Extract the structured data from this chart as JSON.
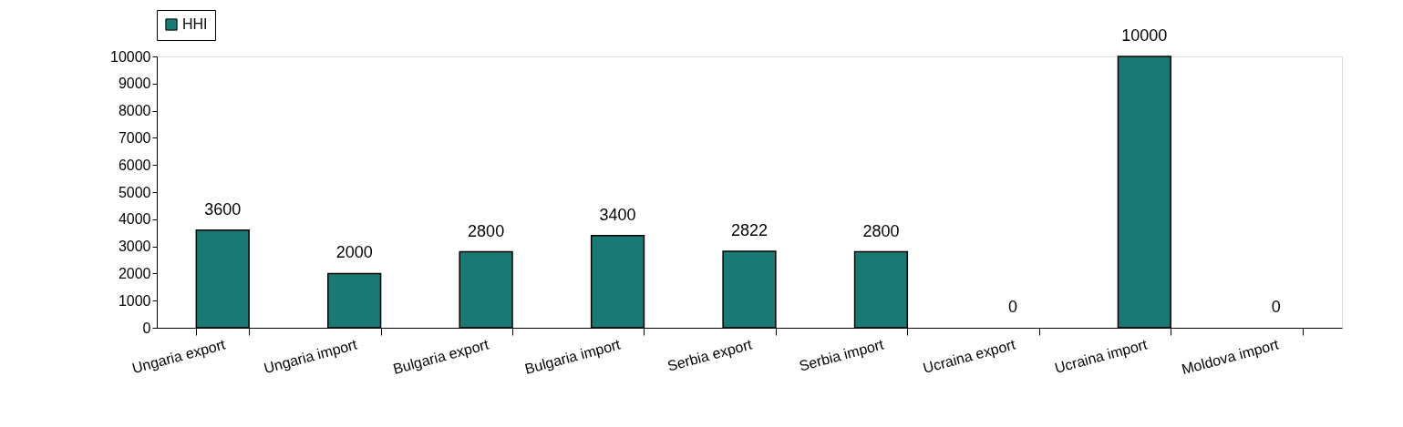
{
  "chart_data": {
    "type": "bar",
    "categories": [
      "Ungaria export",
      "Ungaria import",
      "Bulgaria export",
      "Bulgaria import",
      "Serbia export",
      "Serbia import",
      "Ucraina export",
      "Ucraina import",
      "Moldova import"
    ],
    "series": [
      {
        "name": "HHI",
        "color": "#1a7a73",
        "values": [
          3600,
          2000,
          2800,
          3400,
          2822,
          2800,
          0,
          10000,
          0
        ]
      }
    ],
    "ylim": [
      0,
      10000
    ],
    "yticks": [
      0,
      1000,
      2000,
      3000,
      4000,
      5000,
      6000,
      7000,
      8000,
      9000,
      10000
    ],
    "grid": false,
    "legend": "top",
    "data_labels": true
  }
}
